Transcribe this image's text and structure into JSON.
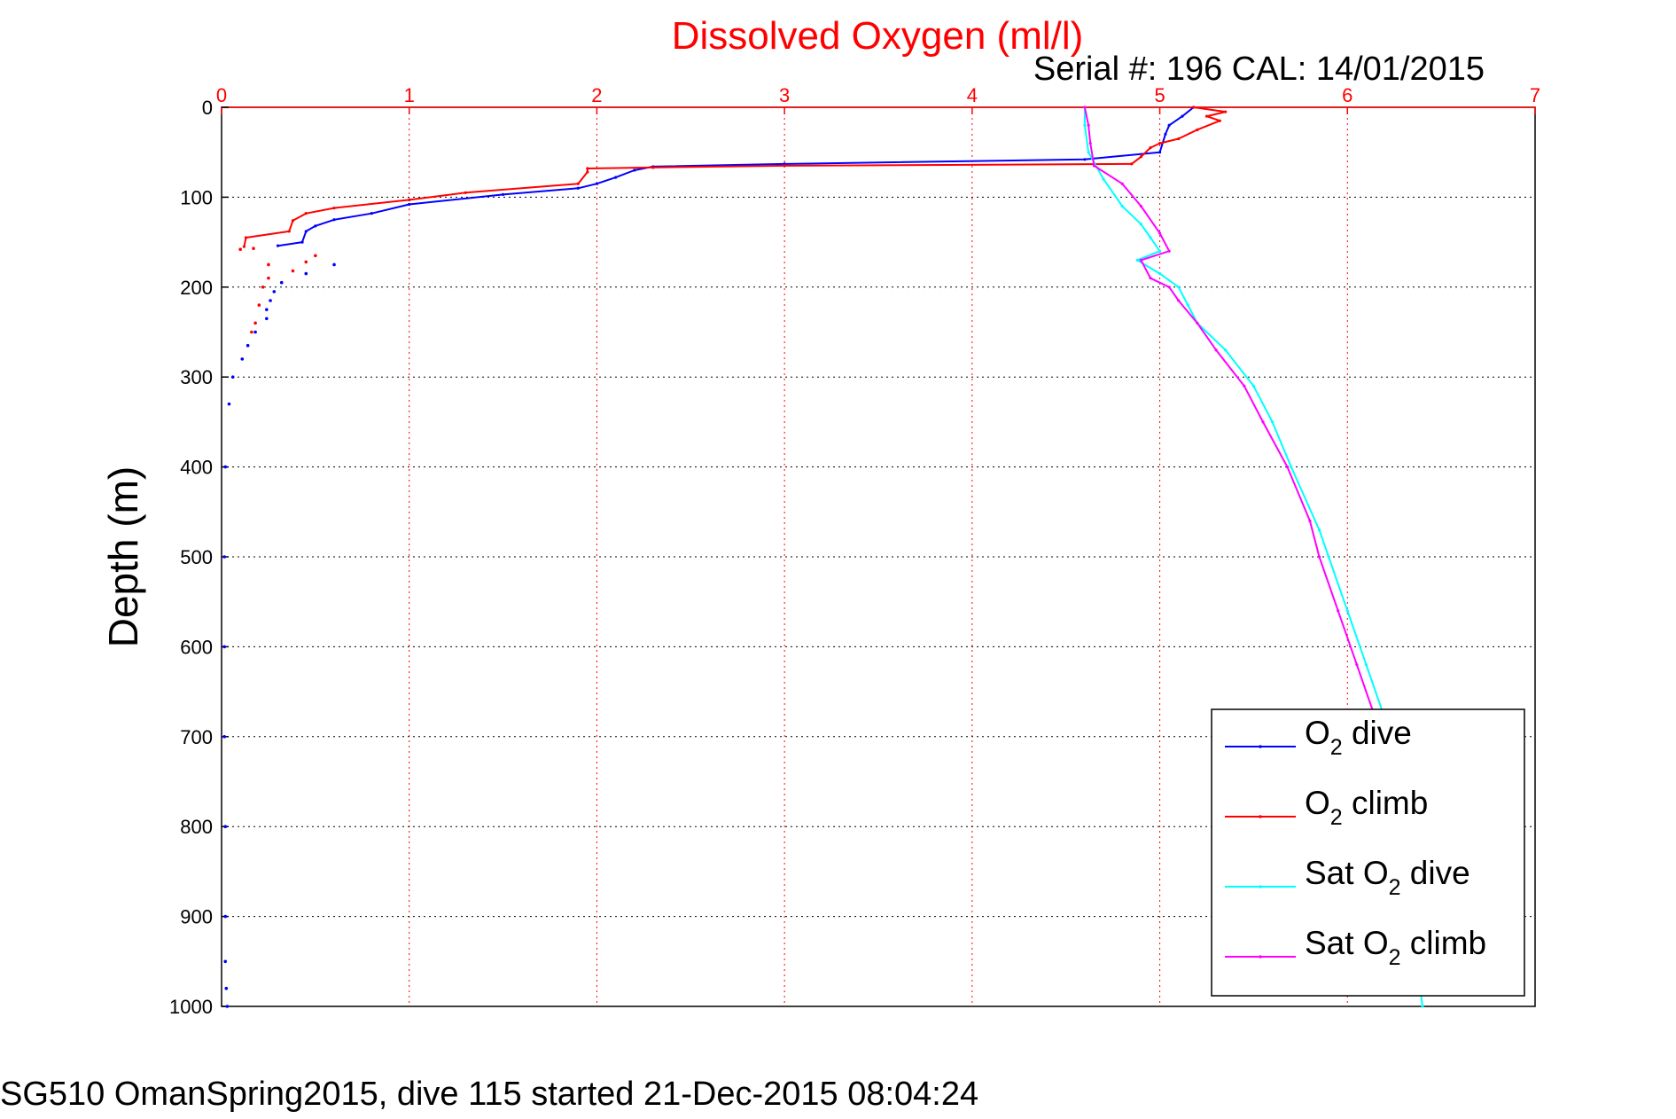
{
  "chart_data": {
    "type": "line",
    "title": "Dissolved Oxygen (ml/l)",
    "serial_text": "Serial #: 196  CAL: 14/01/2015",
    "ylabel": "Depth (m)",
    "footer": "SG510 OmanSpring2015, dive 115 started 21-Dec-2015 08:04:24",
    "xlim": [
      0,
      7
    ],
    "ylim": [
      0,
      1000
    ],
    "y_reversed": true,
    "x_axis_position": "top",
    "grid": true,
    "legend_position": "bottom-right",
    "x_ticks": [
      "0",
      "1",
      "2",
      "3",
      "4",
      "5",
      "6",
      "7"
    ],
    "y_ticks": [
      "0",
      "100",
      "200",
      "300",
      "400",
      "500",
      "600",
      "700",
      "800",
      "900",
      "1000"
    ],
    "series": [
      {
        "name": "O2 dive",
        "legend_label": "O",
        "legend_sub": "2",
        "legend_suffix": " dive",
        "color": "#0000ff",
        "x": [
          5.18,
          5.12,
          5.05,
          5.03,
          5.0,
          4.6,
          3.0,
          2.3,
          2.2,
          2.1,
          2.0,
          1.9,
          1.5,
          1.0,
          0.8,
          0.6,
          0.5,
          0.45,
          0.43,
          0.3
        ],
        "y": [
          0,
          10,
          20,
          30,
          50,
          58,
          63,
          66,
          70,
          78,
          85,
          90,
          97,
          108,
          118,
          125,
          132,
          138,
          150,
          154
        ]
      },
      {
        "name": "O2 climb",
        "legend_label": "O",
        "legend_sub": "2",
        "legend_suffix": " climb",
        "color": "#ff0000",
        "x": [
          5.18,
          5.35,
          5.25,
          5.32,
          5.2,
          5.1,
          5.0,
          4.95,
          4.9,
          4.85,
          3.0,
          2.3,
          1.95,
          1.95,
          1.9,
          1.3,
          1.0,
          0.6,
          0.45,
          0.38,
          0.36,
          0.13,
          0.12
        ],
        "y": [
          0,
          5,
          10,
          15,
          25,
          35,
          40,
          45,
          55,
          63,
          65,
          67,
          68,
          72,
          85,
          95,
          103,
          112,
          118,
          126,
          138,
          145,
          155
        ]
      },
      {
        "name": "Sat O2 dive",
        "legend_label": "Sat O",
        "legend_sub": "2",
        "legend_suffix": " dive",
        "color": "#00ffff",
        "x": [
          4.6,
          4.6,
          4.62,
          4.7,
          4.8,
          4.9,
          4.95,
          5.0,
          4.88,
          5.0,
          5.1,
          5.15,
          5.2,
          5.35,
          5.5,
          5.6,
          5.7,
          5.85,
          5.9,
          6.0,
          6.1,
          6.2,
          6.4
        ],
        "y": [
          0,
          20,
          50,
          80,
          110,
          130,
          145,
          160,
          170,
          185,
          200,
          220,
          240,
          270,
          310,
          350,
          400,
          470,
          500,
          560,
          620,
          680,
          1000
        ]
      },
      {
        "name": "Sat O2 climb",
        "legend_label": "Sat O",
        "legend_sub": "2",
        "legend_suffix": " climb",
        "color": "#ff00ff",
        "x": [
          4.6,
          4.62,
          4.63,
          4.65,
          4.8,
          4.9,
          5.0,
          5.05,
          4.9,
          4.95,
          5.05,
          5.1,
          5.2,
          5.3,
          5.45,
          5.55,
          5.68,
          5.8,
          5.85,
          5.95,
          6.05,
          6.15,
          6.27,
          6.3
        ],
        "y": [
          0,
          20,
          40,
          65,
          85,
          110,
          140,
          160,
          170,
          190,
          200,
          215,
          240,
          270,
          310,
          350,
          400,
          460,
          500,
          560,
          620,
          680,
          740,
          800
        ]
      }
    ],
    "scatter_points": {
      "red": {
        "color": "#ff0000",
        "x": [
          0.1,
          0.17,
          0.25,
          0.38,
          0.45,
          0.5,
          0.25,
          0.22,
          0.2,
          0.18,
          0.16
        ],
        "y": [
          158,
          157,
          175,
          182,
          172,
          165,
          190,
          200,
          220,
          240,
          250
        ]
      },
      "blue": {
        "color": "#0000ff",
        "x": [
          0.6,
          0.45,
          0.32,
          0.28,
          0.26,
          0.24,
          0.24,
          0.18,
          0.14,
          0.11,
          0.06,
          0.04,
          0.02,
          0.015,
          0.015,
          0.015,
          0.02,
          0.02,
          0.02,
          0.025,
          0.03
        ],
        "y": [
          175,
          185,
          195,
          205,
          215,
          225,
          235,
          250,
          265,
          280,
          300,
          330,
          400,
          500,
          600,
          700,
          800,
          900,
          950,
          980,
          1000
        ]
      }
    }
  }
}
